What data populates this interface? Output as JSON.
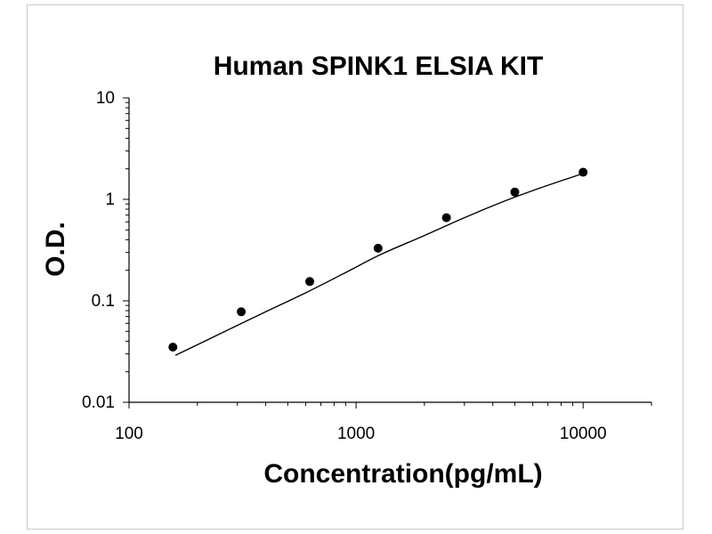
{
  "chart_data": {
    "type": "scatter",
    "title": "Human SPINK1 ELSIA KIT",
    "xlabel": "Concentration(pg/mL)",
    "ylabel": "O.D.",
    "x_scale": "log",
    "y_scale": "log",
    "xlim": [
      100,
      20000
    ],
    "ylim": [
      0.01,
      10
    ],
    "x_ticks": [
      100,
      1000,
      10000
    ],
    "x_tick_labels": [
      "100",
      "1000",
      "10000"
    ],
    "y_ticks": [
      0.01,
      0.1,
      1,
      10
    ],
    "y_tick_labels": [
      "0.01",
      "0.1",
      "1",
      "10"
    ],
    "grid": false,
    "legend": "none",
    "series": [
      {
        "x": [
          156,
          312,
          625,
          1250,
          2500,
          5000,
          10000
        ],
        "y": [
          0.035,
          0.078,
          0.155,
          0.33,
          0.66,
          1.18,
          1.85
        ]
      }
    ],
    "fit_curve": {
      "x": [
        160,
        250,
        400,
        600,
        900,
        1300,
        2000,
        3000,
        4500,
        6500,
        10000
      ],
      "y": [
        0.029,
        0.047,
        0.078,
        0.12,
        0.19,
        0.29,
        0.44,
        0.66,
        0.96,
        1.3,
        1.8
      ]
    },
    "colors": {
      "marker": "#000000",
      "line": "#000000",
      "axis": "#000000"
    }
  }
}
